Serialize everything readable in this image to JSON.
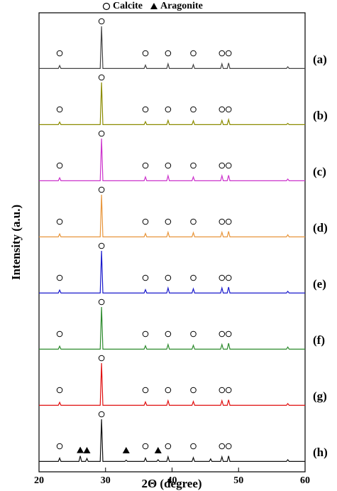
{
  "chart_data": {
    "type": "line",
    "x_label": "2Θ (degree)",
    "y_label": "Intensity (a.u.)",
    "xlim": [
      20,
      60
    ],
    "xticks": [
      20,
      30,
      40,
      50,
      60
    ],
    "ylim": [
      0,
      120
    ],
    "legend": [
      {
        "name": "Calcite",
        "symbol": "circle"
      },
      {
        "name": "Aragonite",
        "symbol": "triangle"
      }
    ],
    "calcite_peaks": [
      23.1,
      29.4,
      36.0,
      39.4,
      43.2,
      47.5,
      48.5
    ],
    "x": [
      20,
      22.9,
      23.1,
      23.3,
      26.0,
      26.2,
      26.4,
      27.0,
      27.2,
      27.4,
      29.2,
      29.4,
      29.6,
      32.9,
      33.1,
      33.3,
      35.8,
      36.0,
      36.2,
      37.7,
      37.9,
      38.1,
      39.2,
      39.4,
      39.6,
      43.0,
      43.2,
      43.4,
      45.6,
      45.8,
      46.0,
      47.3,
      47.5,
      47.7,
      48.3,
      48.5,
      48.7,
      57.2,
      57.4,
      57.6,
      60
    ],
    "series": [
      {
        "name": "(a)",
        "color": "#444444",
        "values": [
          1,
          1,
          8,
          1,
          1,
          1,
          1,
          1,
          1,
          1,
          1,
          100,
          1,
          1,
          1,
          1,
          1,
          9,
          1,
          1,
          1,
          1,
          1,
          12,
          1,
          1,
          10,
          1,
          1,
          1,
          1,
          1,
          12,
          1,
          1,
          14,
          1,
          1,
          5,
          1,
          1
        ]
      },
      {
        "name": "(b)",
        "color": "#8b8b00",
        "values": [
          1,
          1,
          7,
          1,
          1,
          1,
          1,
          1,
          1,
          1,
          1,
          100,
          1,
          1,
          1,
          1,
          1,
          8,
          1,
          1,
          1,
          1,
          1,
          11,
          1,
          1,
          10,
          1,
          1,
          1,
          1,
          1,
          11,
          1,
          1,
          13,
          1,
          1,
          4,
          1,
          1
        ]
      },
      {
        "name": "(c)",
        "color": "#cc33cc",
        "values": [
          1,
          1,
          8,
          1,
          1,
          1,
          1,
          1,
          1,
          1,
          1,
          100,
          1,
          1,
          1,
          1,
          1,
          10,
          1,
          1,
          1,
          1,
          1,
          13,
          1,
          1,
          10,
          1,
          1,
          1,
          1,
          1,
          13,
          1,
          1,
          14,
          1,
          1,
          5,
          1,
          1
        ]
      },
      {
        "name": "(d)",
        "color": "#e8963c",
        "values": [
          1,
          1,
          8,
          1,
          1,
          1,
          1,
          1,
          1,
          1,
          1,
          100,
          1,
          1,
          1,
          1,
          1,
          9,
          1,
          1,
          1,
          1,
          1,
          12,
          1,
          1,
          11,
          1,
          1,
          1,
          1,
          1,
          12,
          1,
          1,
          14,
          1,
          1,
          6,
          1,
          1
        ]
      },
      {
        "name": "(e)",
        "color": "#1a1acc",
        "values": [
          1,
          1,
          8,
          1,
          1,
          1,
          1,
          1,
          1,
          1,
          1,
          100,
          1,
          1,
          1,
          1,
          1,
          9,
          1,
          1,
          1,
          1,
          1,
          13,
          1,
          1,
          11,
          1,
          1,
          1,
          1,
          1,
          13,
          1,
          1,
          15,
          1,
          1,
          5,
          1,
          1
        ]
      },
      {
        "name": "(f)",
        "color": "#2e8b2e",
        "values": [
          1,
          1,
          8,
          1,
          1,
          1,
          1,
          1,
          1,
          1,
          1,
          100,
          1,
          1,
          1,
          1,
          1,
          9,
          1,
          1,
          1,
          1,
          1,
          12,
          1,
          1,
          10,
          1,
          1,
          1,
          1,
          1,
          12,
          1,
          1,
          15,
          1,
          1,
          6,
          1,
          1
        ]
      },
      {
        "name": "(g)",
        "color": "#e01010",
        "values": [
          1,
          1,
          8,
          1,
          1,
          1,
          1,
          1,
          1,
          1,
          1,
          100,
          1,
          1,
          1,
          1,
          1,
          9,
          1,
          1,
          1,
          1,
          1,
          12,
          1,
          1,
          10,
          1,
          1,
          1,
          1,
          1,
          12,
          1,
          1,
          14,
          1,
          1,
          5,
          1,
          1
        ]
      },
      {
        "name": "(h)",
        "color": "#111111",
        "aragonite_peaks": [
          26.2,
          27.2,
          33.1,
          37.9
        ],
        "values": [
          1,
          1,
          9,
          1,
          1,
          14,
          1,
          1,
          8,
          1,
          1,
          100,
          1,
          1,
          4,
          1,
          1,
          9,
          1,
          1,
          5,
          1,
          1,
          12,
          1,
          1,
          10,
          1,
          1,
          7,
          1,
          1,
          12,
          1,
          1,
          14,
          1,
          1,
          5,
          1,
          1
        ]
      }
    ]
  }
}
